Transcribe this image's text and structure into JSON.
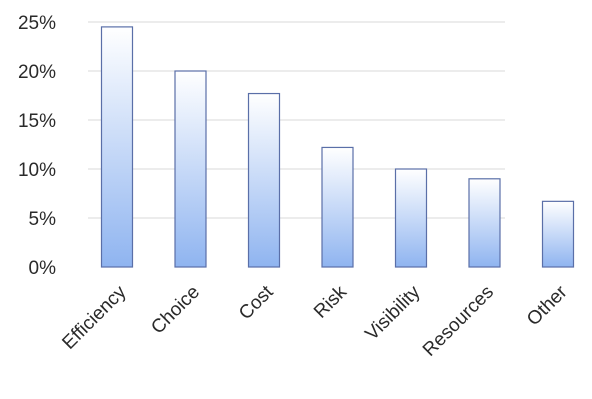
{
  "chart_data": {
    "type": "bar",
    "title": "",
    "xlabel": "",
    "ylabel": "",
    "categories": [
      "Efficiency",
      "Choice",
      "Cost",
      "Risk",
      "Visibility",
      "Resources",
      "Other"
    ],
    "values": [
      24.5,
      20,
      17.7,
      12.2,
      10,
      9,
      6.7
    ],
    "ylim": [
      0,
      25
    ],
    "yticks": [
      0,
      5,
      10,
      15,
      20,
      25
    ],
    "ytick_labels": [
      "0%",
      "5%",
      "10%",
      "15%",
      "20%",
      "25%"
    ],
    "grid": true,
    "legend": "none",
    "bar_color_top": "#ffffff",
    "bar_color_bottom": "#8fb4f0",
    "bar_edge_color": "#5a6fa8"
  }
}
